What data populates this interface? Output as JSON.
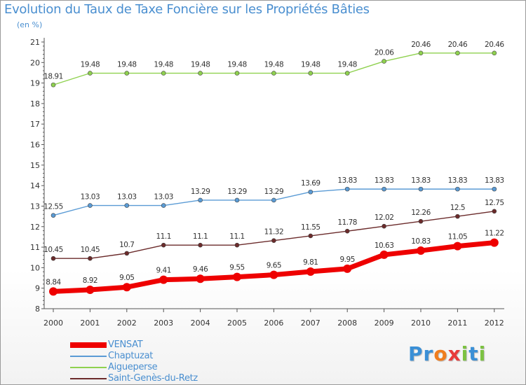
{
  "header": {
    "title": "Evolution du Taux de Taxe Foncière sur les Propriétés Bâties",
    "unit": "(en %)"
  },
  "logo": {
    "letters": [
      "P",
      "r",
      "o",
      "x",
      "i",
      "t",
      "i"
    ]
  },
  "colors": {
    "axis": "#555555",
    "tick_text": "#333333",
    "label_text": "#333333",
    "grid": "#cfcfcf",
    "logo": [
      "#3a8fd6",
      "#3a8fd6",
      "#f07d1e",
      "#e83a3a",
      "#7cc242",
      "#3a8fd6",
      "#7cc242"
    ]
  },
  "chart_data": {
    "type": "line",
    "title": "Evolution du Taux de Taxe Foncière sur les Propriétés Bâties",
    "ylabel": "(en %)",
    "xlabel": "",
    "ylim": [
      8,
      21
    ],
    "yticks": [
      8,
      9,
      10,
      11,
      12,
      13,
      14,
      15,
      16,
      17,
      18,
      19,
      20,
      21
    ],
    "categories": [
      "2000",
      "2001",
      "2002",
      "2003",
      "2004",
      "2005",
      "2006",
      "2007",
      "2008",
      "2009",
      "2010",
      "2011",
      "2012"
    ],
    "series": [
      {
        "name": "Aigueperse",
        "color": "#8fd14f",
        "values": [
          18.91,
          19.48,
          19.48,
          19.48,
          19.48,
          19.48,
          19.48,
          19.48,
          19.48,
          20.06,
          20.46,
          20.46,
          20.46
        ],
        "labels": [
          "18.91",
          "19.48",
          "19.48",
          "19.48",
          "19.48",
          "19.48",
          "19.48",
          "19.48",
          "19.48",
          "20.06",
          "20.46",
          "20.46",
          "20.46"
        ]
      },
      {
        "name": "Chaptuzat",
        "color": "#5a9bd5",
        "values": [
          12.55,
          13.03,
          13.03,
          13.03,
          13.29,
          13.29,
          13.29,
          13.69,
          13.83,
          13.83,
          13.83,
          13.83,
          13.83
        ],
        "labels": [
          "12.55",
          "13.03",
          "13.03",
          "13.03",
          "13.29",
          "13.29",
          "13.29",
          "13.69",
          "13.83",
          "13.83",
          "13.83",
          "13.83",
          "13.83"
        ]
      },
      {
        "name": "Saint-Genès-du-Retz",
        "color": "#6b2b2b",
        "values": [
          10.45,
          10.45,
          10.7,
          11.1,
          11.1,
          11.1,
          11.32,
          11.55,
          11.78,
          12.02,
          12.26,
          12.5,
          12.75
        ],
        "labels": [
          "10.45",
          "10.45",
          "10.7",
          "11.1",
          "11.1",
          "11.1",
          "11.32",
          "11.55",
          "11.78",
          "12.02",
          "12.26",
          "12.5",
          "12.75"
        ]
      },
      {
        "name": "VENSAT",
        "color": "#ee0000",
        "values": [
          8.84,
          8.92,
          9.05,
          9.41,
          9.46,
          9.55,
          9.65,
          9.81,
          9.95,
          10.63,
          10.83,
          11.05,
          11.22
        ],
        "labels": [
          "8.84",
          "8.92",
          "9.05",
          "9.41",
          "9.46",
          "9.55",
          "9.65",
          "9.81",
          "9.95",
          "10.63",
          "10.83",
          "11.05",
          "11.22"
        ]
      }
    ],
    "legend": {
      "placement": "bottom-left",
      "entries": [
        "VENSAT",
        "Chaptuzat",
        "Aigueperse",
        "Saint-Genès-du-Retz"
      ]
    }
  }
}
